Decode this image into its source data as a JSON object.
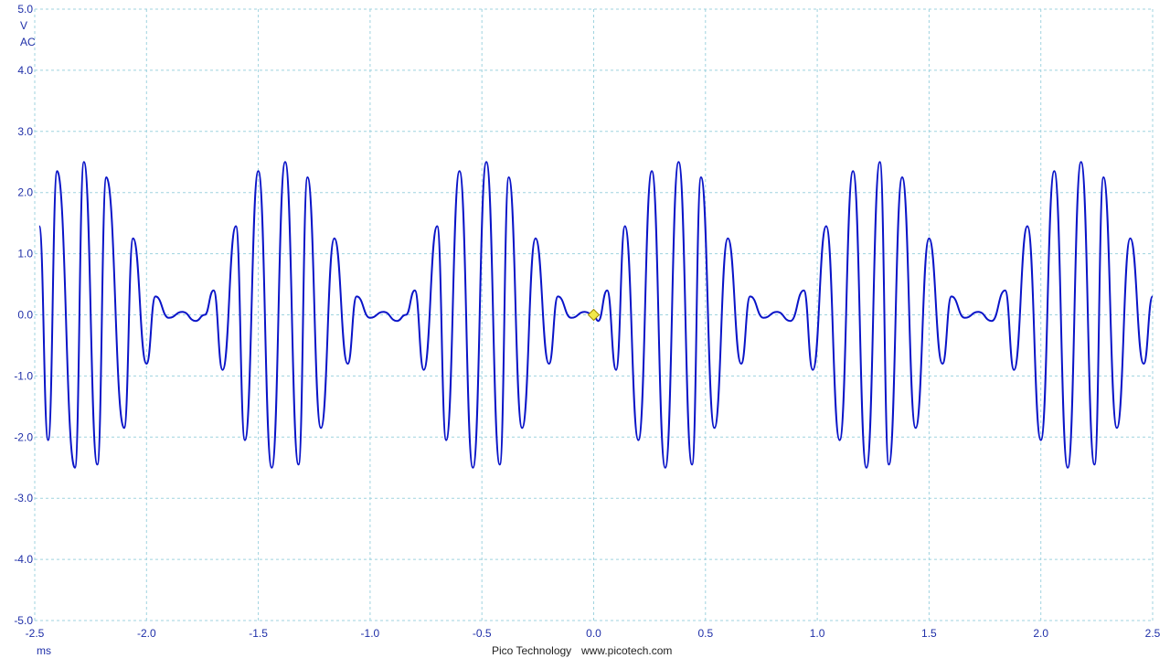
{
  "chart_data": {
    "type": "line",
    "x_unit_label": "ms",
    "y_unit_label": "V",
    "y_coupling_label": "AC",
    "xlim": [
      -2.5,
      2.5
    ],
    "ylim": [
      -5.0,
      5.0
    ],
    "x_ticks": [
      "-2.5",
      "-2.0",
      "-1.5",
      "-1.0",
      "-0.5",
      "0.0",
      "0.5",
      "1.0",
      "1.5",
      "2.0",
      "2.5"
    ],
    "y_ticks": [
      "5.0",
      "4.0",
      "3.0",
      "2.0",
      "1.0",
      "0.0",
      "-1.0",
      "-2.0",
      "-3.0",
      "-4.0",
      "-5.0"
    ],
    "grid": true,
    "trigger_marker": {
      "x": 0.0,
      "y": 0.0
    },
    "series": [
      {
        "color": "#0a14c8",
        "values_note": "burst pattern repeating every ~1.0 ms; peaks approx +/-2.5 V",
        "points": [
          [
            -2.48,
            1.45
          ],
          [
            -2.44,
            -2.05
          ],
          [
            -2.4,
            2.35
          ],
          [
            -2.32,
            -2.5
          ],
          [
            -2.28,
            2.5
          ],
          [
            -2.22,
            -2.45
          ],
          [
            -2.18,
            2.25
          ],
          [
            -2.1,
            -1.85
          ],
          [
            -2.06,
            1.25
          ],
          [
            -2.0,
            -0.8
          ],
          [
            -1.96,
            0.3
          ],
          [
            -1.9,
            -0.05
          ],
          [
            -1.84,
            0.05
          ],
          [
            -1.78,
            -0.1
          ],
          [
            -1.74,
            0.0
          ],
          [
            -1.7,
            0.4
          ],
          [
            -1.66,
            -0.9
          ],
          [
            -1.6,
            1.45
          ],
          [
            -1.56,
            -2.05
          ],
          [
            -1.5,
            2.35
          ],
          [
            -1.44,
            -2.5
          ],
          [
            -1.38,
            2.5
          ],
          [
            -1.32,
            -2.45
          ],
          [
            -1.28,
            2.25
          ],
          [
            -1.22,
            -1.85
          ],
          [
            -1.16,
            1.25
          ],
          [
            -1.1,
            -0.8
          ],
          [
            -1.06,
            0.3
          ],
          [
            -1.0,
            -0.05
          ],
          [
            -0.94,
            0.05
          ],
          [
            -0.88,
            -0.1
          ],
          [
            -0.84,
            0.0
          ],
          [
            -0.8,
            0.4
          ],
          [
            -0.76,
            -0.9
          ],
          [
            -0.7,
            1.45
          ],
          [
            -0.66,
            -2.05
          ],
          [
            -0.6,
            2.35
          ],
          [
            -0.54,
            -2.5
          ],
          [
            -0.48,
            2.5
          ],
          [
            -0.42,
            -2.45
          ],
          [
            -0.38,
            2.25
          ],
          [
            -0.32,
            -1.85
          ],
          [
            -0.26,
            1.25
          ],
          [
            -0.2,
            -0.8
          ],
          [
            -0.16,
            0.3
          ],
          [
            -0.1,
            -0.05
          ],
          [
            -0.04,
            0.05
          ],
          [
            0.0,
            0.0
          ],
          [
            0.02,
            -0.1
          ],
          [
            0.06,
            0.4
          ],
          [
            0.1,
            -0.9
          ],
          [
            0.14,
            1.45
          ],
          [
            0.2,
            -2.05
          ],
          [
            0.26,
            2.35
          ],
          [
            0.32,
            -2.5
          ],
          [
            0.38,
            2.5
          ],
          [
            0.44,
            -2.45
          ],
          [
            0.48,
            2.25
          ],
          [
            0.54,
            -1.85
          ],
          [
            0.6,
            1.25
          ],
          [
            0.66,
            -0.8
          ],
          [
            0.7,
            0.3
          ],
          [
            0.76,
            -0.05
          ],
          [
            0.82,
            0.05
          ],
          [
            0.88,
            -0.1
          ],
          [
            0.94,
            0.4
          ],
          [
            0.98,
            -0.9
          ],
          [
            1.04,
            1.45
          ],
          [
            1.1,
            -2.05
          ],
          [
            1.16,
            2.35
          ],
          [
            1.22,
            -2.5
          ],
          [
            1.28,
            2.5
          ],
          [
            1.32,
            -2.45
          ],
          [
            1.38,
            2.25
          ],
          [
            1.44,
            -1.85
          ],
          [
            1.5,
            1.25
          ],
          [
            1.56,
            -0.8
          ],
          [
            1.6,
            0.3
          ],
          [
            1.66,
            -0.05
          ],
          [
            1.72,
            0.05
          ],
          [
            1.78,
            -0.1
          ],
          [
            1.84,
            0.4
          ],
          [
            1.88,
            -0.9
          ],
          [
            1.94,
            1.45
          ],
          [
            2.0,
            -2.05
          ],
          [
            2.06,
            2.35
          ],
          [
            2.12,
            -2.5
          ],
          [
            2.18,
            2.5
          ],
          [
            2.24,
            -2.45
          ],
          [
            2.28,
            2.25
          ],
          [
            2.34,
            -1.85
          ],
          [
            2.4,
            1.25
          ],
          [
            2.46,
            -0.8
          ],
          [
            2.5,
            0.3
          ]
        ]
      }
    ]
  },
  "footer": {
    "brand": "Pico Technology",
    "url": "www.picotech.com"
  }
}
